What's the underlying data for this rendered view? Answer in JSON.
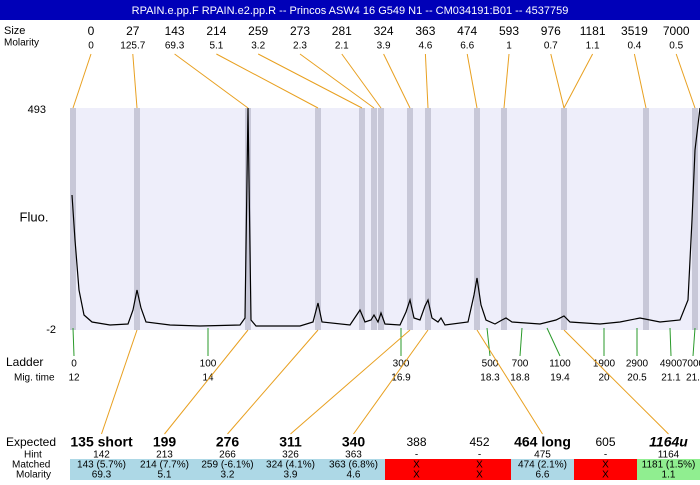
{
  "header": {
    "title": "RPAIN.e.pp.F  RPAIN.e2.pp.R -- Princos ASW4 16 G549 N1 -- CM034191:B01 -- 4537759"
  },
  "peaks": {
    "row_labels": [
      "Size",
      "Molarity"
    ],
    "items": [
      {
        "size": "0",
        "molarity": "0"
      },
      {
        "size": "27",
        "molarity": "125.7"
      },
      {
        "size": "143",
        "molarity": "69.3"
      },
      {
        "size": "214",
        "molarity": "5.1"
      },
      {
        "size": "259",
        "molarity": "3.2"
      },
      {
        "size": "273",
        "molarity": "2.3"
      },
      {
        "size": "281",
        "molarity": "2.1"
      },
      {
        "size": "324",
        "molarity": "3.9"
      },
      {
        "size": "363",
        "molarity": "4.6"
      },
      {
        "size": "474",
        "molarity": "6.6"
      },
      {
        "size": "593",
        "molarity": "1"
      },
      {
        "size": "976",
        "molarity": "0.7"
      },
      {
        "size": "1181",
        "molarity": "1.1"
      },
      {
        "size": "3519",
        "molarity": "0.4"
      },
      {
        "size": "7000",
        "molarity": "0.5"
      }
    ]
  },
  "plot": {
    "y_max": "493",
    "y_min": "-2",
    "y_label": "Fluo."
  },
  "ladder": {
    "row_labels": [
      "Ladder",
      "Mig. time"
    ],
    "items": [
      {
        "size": "0",
        "time": "12"
      },
      {
        "size": "100",
        "time": "14"
      },
      {
        "size": "300",
        "time": "16.9"
      },
      {
        "size": "500",
        "time": "18.3"
      },
      {
        "size": "700",
        "time": "18.8"
      },
      {
        "size": "1100",
        "time": "19.4"
      },
      {
        "size": "1900",
        "time": "20"
      },
      {
        "size": "2900",
        "time": "20.5"
      },
      {
        "size": "4900",
        "time": "21.1"
      },
      {
        "size": "7000",
        "time": "21."
      }
    ]
  },
  "expected": {
    "row_labels": [
      "Expected",
      "Hint",
      "Matched",
      "Molarity"
    ],
    "columns": [
      {
        "expected": "135 short",
        "hint": "142",
        "matched": "143 (5.7%)",
        "molarity": "69.3",
        "status": "match"
      },
      {
        "expected": "199",
        "hint": "213",
        "matched": "214 (7.7%)",
        "molarity": "5.1",
        "status": "match"
      },
      {
        "expected": "276",
        "hint": "266",
        "matched": "259 (-6.1%)",
        "molarity": "3.2",
        "status": "match"
      },
      {
        "expected": "311",
        "hint": "326",
        "matched": "324 (4.1%)",
        "molarity": "3.9",
        "status": "match"
      },
      {
        "expected": "340",
        "hint": "363",
        "matched": "363 (6.8%)",
        "molarity": "4.6",
        "status": "match"
      },
      {
        "expected": "388",
        "hint": "-",
        "matched": "X",
        "molarity": "X",
        "status": "missing"
      },
      {
        "expected": "452",
        "hint": "-",
        "matched": "X",
        "molarity": "X",
        "status": "missing"
      },
      {
        "expected": "464 long",
        "hint": "475",
        "matched": "474 (2.1%)",
        "molarity": "6.6",
        "status": "match"
      },
      {
        "expected": "605",
        "hint": "-",
        "matched": "X",
        "molarity": "X",
        "status": "missing"
      },
      {
        "expected": "1164u",
        "hint": "1164",
        "matched": "1181 (1.5%)",
        "molarity": "1.1",
        "status": "unexpected"
      }
    ]
  }
}
